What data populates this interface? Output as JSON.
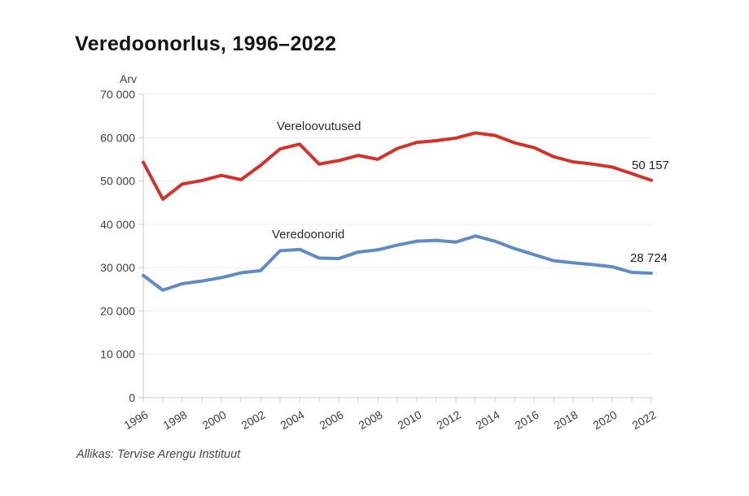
{
  "title": "Veredoonorlus, 1996–2022",
  "source": "Allikas: Tervise Arengu Instituut",
  "chart_data": {
    "type": "line",
    "title": "Veredoonorlus, 1996–2022",
    "ylabel": "Arv",
    "xlabel": "",
    "grid": "horizontal",
    "legend_position": "inline-labels",
    "ylim": [
      0,
      70000
    ],
    "ytick_values": [
      0,
      10000,
      20000,
      30000,
      40000,
      50000,
      60000,
      70000
    ],
    "ytick_labels": [
      "0",
      "10 000",
      "20 000",
      "30 000",
      "40 000",
      "50 000",
      "60 000",
      "70 000"
    ],
    "x": [
      1996,
      1997,
      1998,
      1999,
      2000,
      2001,
      2002,
      2003,
      2004,
      2005,
      2006,
      2007,
      2008,
      2009,
      2010,
      2011,
      2012,
      2013,
      2014,
      2015,
      2016,
      2017,
      2018,
      2019,
      2020,
      2021,
      2022
    ],
    "xtick_labels": [
      "1996",
      "1998",
      "2000",
      "2002",
      "2004",
      "2006",
      "2008",
      "2010",
      "2012",
      "2014",
      "2016",
      "2018",
      "2020",
      "2022"
    ],
    "series": [
      {
        "name": "Vereloovutused",
        "color": "#d3322a",
        "end_label": "50 157",
        "end_value": 50157,
        "values": [
          54300,
          45800,
          49300,
          50100,
          51300,
          50300,
          53600,
          57400,
          58500,
          53900,
          54700,
          55900,
          55000,
          57500,
          58900,
          59300,
          59900,
          61100,
          60500,
          58800,
          57700,
          55600,
          54400,
          53900,
          53200,
          51700,
          50157
        ]
      },
      {
        "name": "Veredoonorid",
        "color": "#5f8bc1",
        "end_label": "28 724",
        "end_value": 28724,
        "values": [
          28200,
          24800,
          26300,
          26900,
          27700,
          28800,
          29300,
          33900,
          34200,
          32200,
          32100,
          33600,
          34100,
          35200,
          36100,
          36300,
          35900,
          37300,
          36100,
          34400,
          33000,
          31600,
          31100,
          30700,
          30200,
          28900,
          28724
        ]
      }
    ]
  }
}
